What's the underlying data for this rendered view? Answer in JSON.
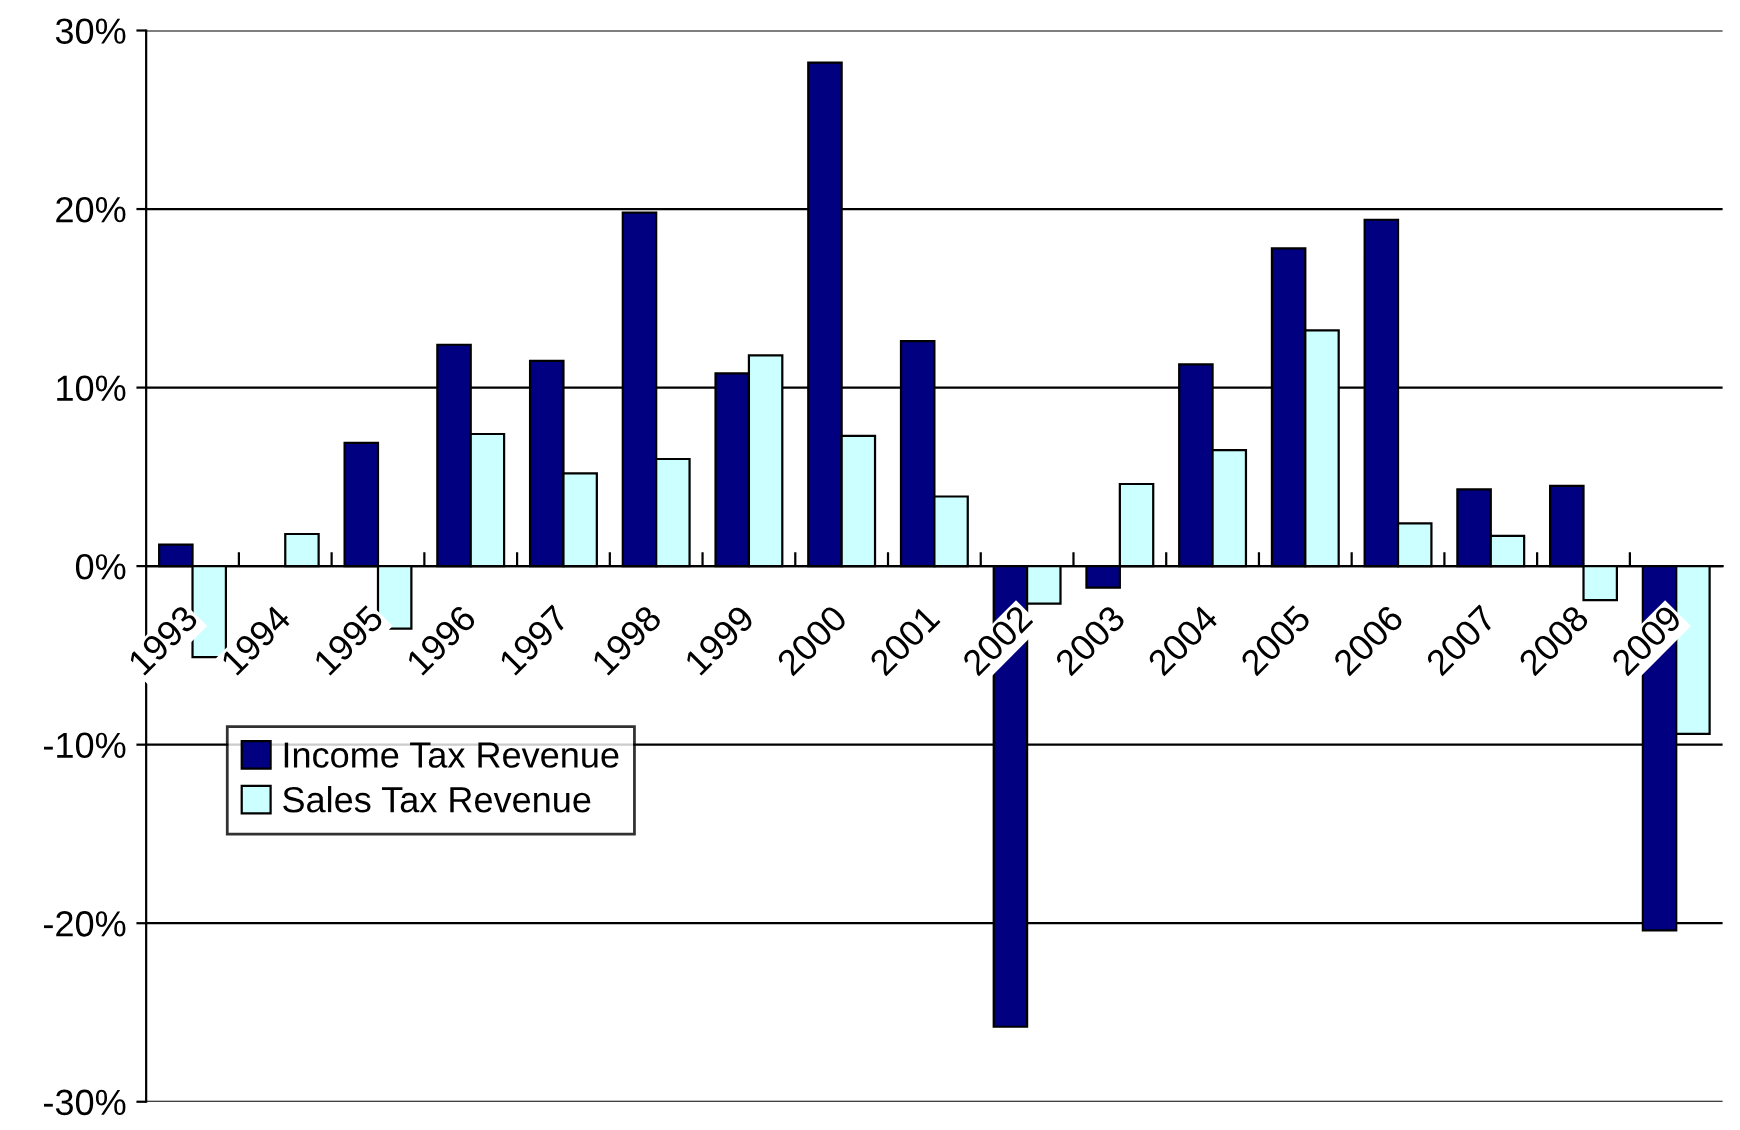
{
  "chart_data": {
    "type": "bar",
    "categories": [
      "1993",
      "1994",
      "1995",
      "1996",
      "1997",
      "1998",
      "1999",
      "2000",
      "2001",
      "2002",
      "2003",
      "2004",
      "2005",
      "2006",
      "2007",
      "2008",
      "2009"
    ],
    "series": [
      {
        "name": "Income Tax Revenue",
        "color": "#000080",
        "values": [
          1.2,
          null,
          6.9,
          12.4,
          11.5,
          19.8,
          10.8,
          28.2,
          12.6,
          -25.8,
          -1.2,
          11.3,
          17.8,
          19.4,
          4.3,
          4.5,
          -20.4
        ]
      },
      {
        "name": "Sales Tax Revenue",
        "color": "#ccffff",
        "values": [
          -5.1,
          1.8,
          -3.5,
          7.4,
          5.2,
          6.0,
          11.8,
          7.3,
          3.9,
          -2.1,
          4.6,
          6.5,
          13.2,
          2.4,
          1.7,
          -1.9,
          -9.4
        ]
      }
    ],
    "ylim": [
      -30,
      30
    ],
    "yticks": [
      {
        "value": -30,
        "label": "-30%"
      },
      {
        "value": -20,
        "label": "-20%"
      },
      {
        "value": -10,
        "label": "-10%"
      },
      {
        "value": 0,
        "label": "0%"
      },
      {
        "value": 10,
        "label": "10%"
      },
      {
        "value": 20,
        "label": "20%"
      },
      {
        "value": 30,
        "label": "30%"
      }
    ],
    "grid": "y",
    "legend": "left"
  }
}
